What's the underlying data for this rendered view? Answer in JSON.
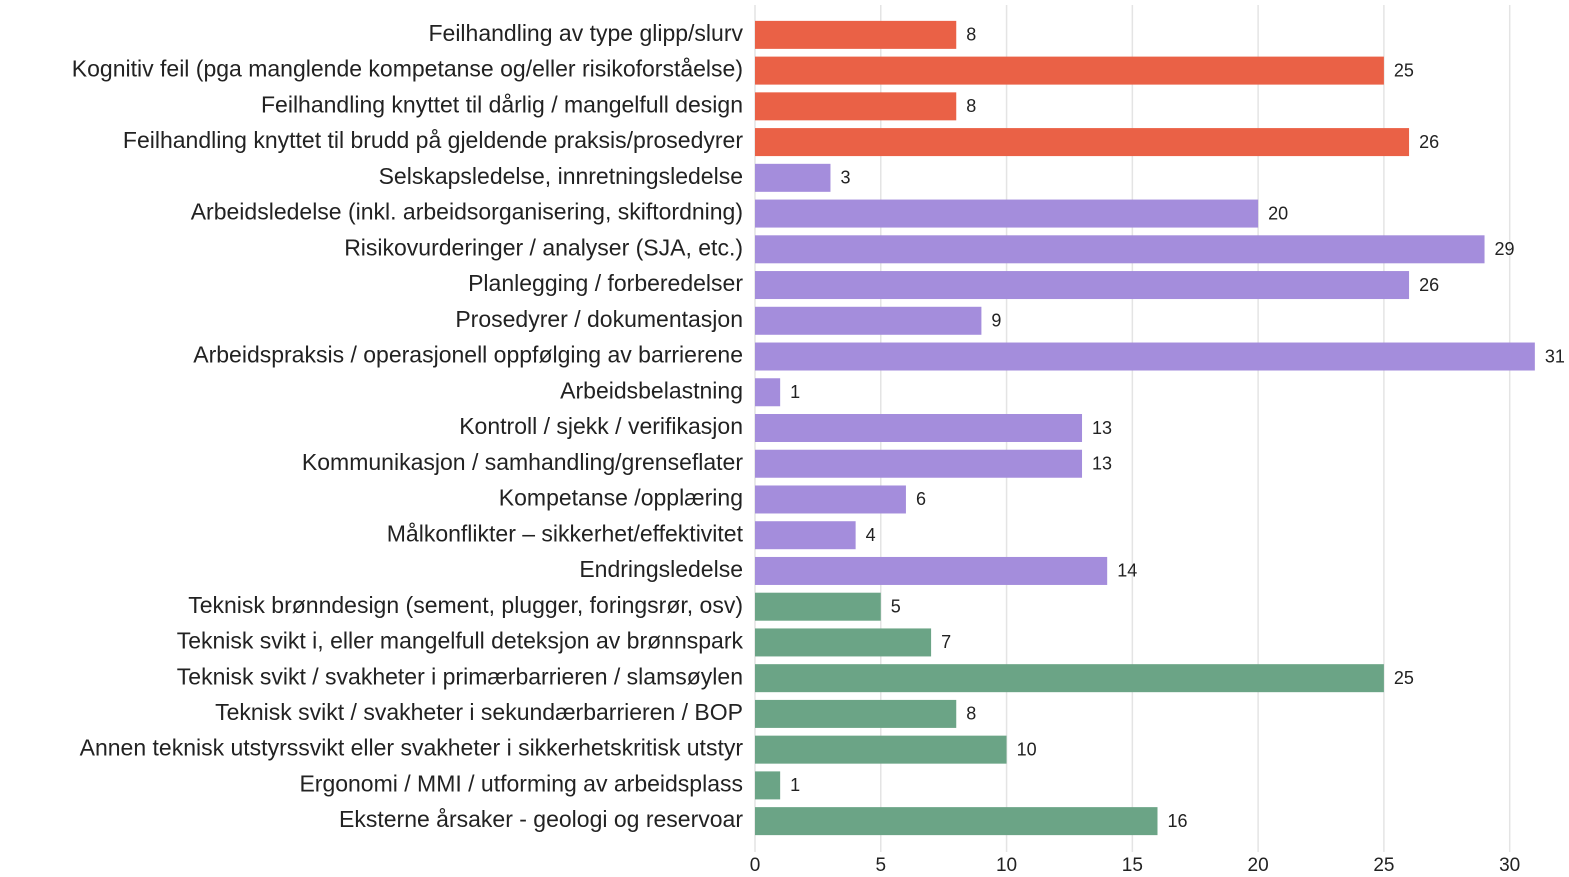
{
  "chart_data": {
    "type": "barh",
    "categories": [
      "Feilhandling av type glipp/slurv",
      "Kognitiv feil (pga manglende kompetanse og/eller risikoforståelse)",
      "Feilhandling knyttet til dårlig / mangelfull design",
      "Feilhandling knyttet til brudd på gjeldende praksis/prosedyrer",
      "Selskapsledelse, innretningsledelse",
      "Arbeidsledelse (inkl. arbeidsorganisering, skiftordning)",
      "Risikovurderinger / analyser (SJA, etc.)",
      "Planlegging / forberedelser",
      "Prosedyrer / dokumentasjon",
      "Arbeidspraksis / operasjonell oppfølging av barrierene",
      "Arbeidsbelastning",
      "Kontroll / sjekk / verifikasjon",
      "Kommunikasjon / samhandling/grenseflater",
      "Kompetanse /opplæring",
      "Målkonflikter – sikkerhet/effektivitet",
      "Endringsledelse",
      "Teknisk brønndesign (sement, plugger, foringsrør, osv)",
      "Teknisk svikt i, eller mangelfull deteksjon av brønnspark",
      "Teknisk svikt / svakheter i primærbarrieren / slamsøylen",
      "Teknisk svikt / svakheter i sekundærbarrieren / BOP",
      "Annen teknisk utstyrssvikt eller svakheter i sikkerhetskritisk utstyr",
      "Ergonomi / MMI / utforming av arbeidsplass",
      "Eksterne årsaker - geologi og reservoar"
    ],
    "values": [
      8,
      25,
      8,
      26,
      3,
      20,
      29,
      26,
      9,
      31,
      1,
      13,
      13,
      6,
      4,
      14,
      5,
      7,
      25,
      8,
      10,
      1,
      16
    ],
    "colors": [
      "#ea6146",
      "#ea6146",
      "#ea6146",
      "#ea6146",
      "#a48ddc",
      "#a48ddc",
      "#a48ddc",
      "#a48ddc",
      "#a48ddc",
      "#a48ddc",
      "#a48ddc",
      "#a48ddc",
      "#a48ddc",
      "#a48ddc",
      "#a48ddc",
      "#a48ddc",
      "#6ba486",
      "#6ba486",
      "#6ba486",
      "#6ba486",
      "#6ba486",
      "#6ba486",
      "#6ba486"
    ],
    "xlim": [
      0,
      32
    ],
    "xticks": [
      0,
      5,
      10,
      15,
      20,
      25,
      30
    ],
    "grid": true
  }
}
